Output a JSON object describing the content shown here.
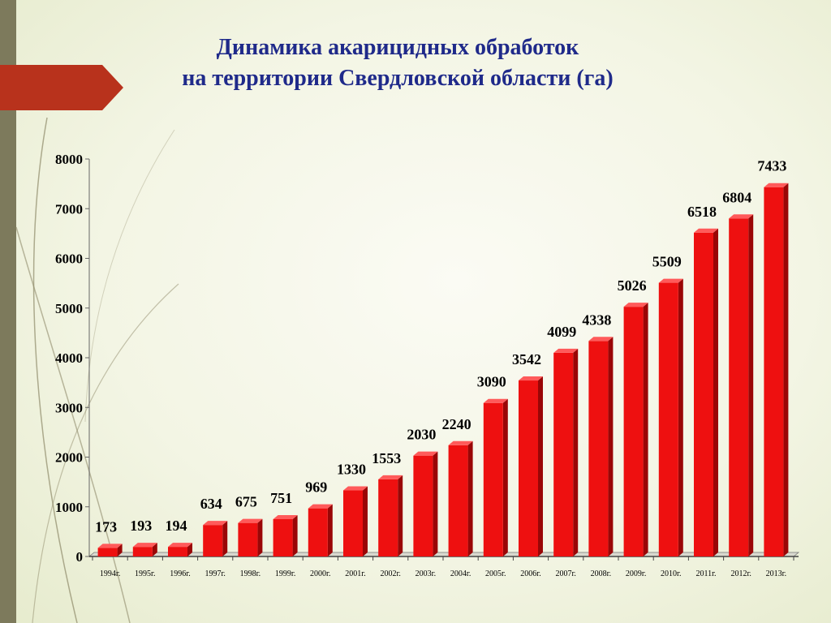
{
  "slide": {
    "title_line1": "Динамика акарицидных обработок",
    "title_line2": "на территории Свердловской области  (га)"
  },
  "colors": {
    "bar_front": "#ee1010",
    "bar_side": "#9a0606",
    "bar_top": "#ff5a5a",
    "title": "#1f2a8a",
    "ribbon": "#b8321c"
  },
  "chart_data": {
    "type": "bar",
    "categories": [
      "1994г.",
      "1995г.",
      "1996г.",
      "1997г.",
      "1998г.",
      "1999г.",
      "2000г.",
      "2001г.",
      "2002г.",
      "2003г.",
      "2004г.",
      "2005г.",
      "2006г.",
      "2007г.",
      "2008г.",
      "2009г.",
      "2010г.",
      "2011г.",
      "2012г.",
      "2013г."
    ],
    "values": [
      173,
      193,
      194,
      634,
      675,
      751,
      969,
      1330,
      1553,
      2030,
      2240,
      3090,
      3542,
      4099,
      4338,
      5026,
      5509,
      6518,
      6804,
      7433
    ],
    "ylim": [
      0,
      8000
    ],
    "yticks": [
      0,
      1000,
      2000,
      3000,
      4000,
      5000,
      6000,
      7000,
      8000
    ],
    "grid": false,
    "legend": "none",
    "data_labels": true
  }
}
